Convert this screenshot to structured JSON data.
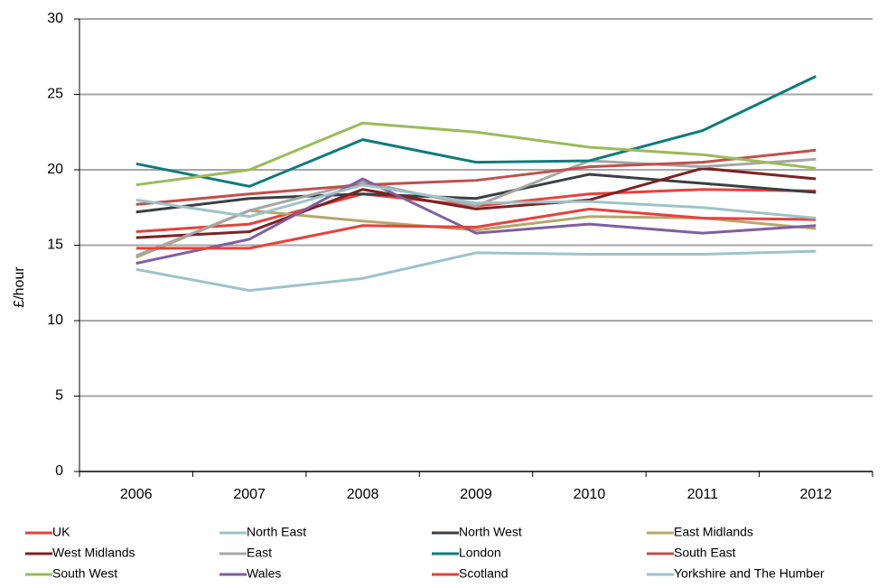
{
  "chart_data": {
    "type": "line",
    "y_label": "£/hour",
    "categories": [
      "2006",
      "2007",
      "2008",
      "2009",
      "2010",
      "2011",
      "2012"
    ],
    "ylim": [
      0,
      30
    ],
    "yticks": [
      0,
      5,
      10,
      15,
      20,
      25,
      30
    ],
    "grid": true,
    "series": [
      {
        "name": "UK",
        "color": "#e8413a",
        "values": [
          15.9,
          16.4,
          18.4,
          17.6,
          18.4,
          18.7,
          18.6
        ]
      },
      {
        "name": "North East",
        "color": "#9dc3c9",
        "values": [
          13.4,
          12.0,
          12.8,
          14.5,
          14.4,
          14.4,
          14.6
        ]
      },
      {
        "name": "North West",
        "color": "#3b3f44",
        "values": [
          17.2,
          18.1,
          18.4,
          18.1,
          19.7,
          19.1,
          18.5
        ]
      },
      {
        "name": "East Midlands",
        "color": "#b5a76c",
        "values": [
          14.2,
          17.3,
          16.6,
          16.0,
          16.9,
          16.8,
          16.1
        ]
      },
      {
        "name": "West Midlands",
        "color": "#7b2322",
        "values": [
          15.5,
          15.9,
          18.7,
          17.4,
          18.0,
          20.1,
          19.4
        ]
      },
      {
        "name": "East",
        "color": "#a6a6a6",
        "values": [
          14.3,
          17.3,
          19.2,
          17.6,
          20.6,
          20.2,
          20.7
        ]
      },
      {
        "name": "London",
        "color": "#0e7c7b",
        "values": [
          20.4,
          18.9,
          22.0,
          20.5,
          20.6,
          22.6,
          26.2
        ]
      },
      {
        "name": "South East",
        "color": "#c0504d",
        "values": [
          17.7,
          18.4,
          19.0,
          19.3,
          20.2,
          20.5,
          21.3
        ]
      },
      {
        "name": "South West",
        "color": "#9bbb59",
        "values": [
          19.0,
          20.0,
          23.1,
          22.5,
          21.5,
          21.0,
          20.1
        ]
      },
      {
        "name": "Wales",
        "color": "#7f5fa0",
        "values": [
          13.8,
          15.4,
          19.4,
          15.8,
          16.4,
          15.8,
          16.3
        ]
      },
      {
        "name": "Scotland",
        "color": "#e8413a",
        "values": [
          14.8,
          14.8,
          16.3,
          16.2,
          17.4,
          16.8,
          16.7
        ]
      },
      {
        "name": "Yorkshire and The Humber",
        "color": "#9dc3c9",
        "values": [
          18.0,
          16.9,
          19.0,
          17.8,
          17.9,
          17.5,
          16.8
        ]
      }
    ]
  }
}
